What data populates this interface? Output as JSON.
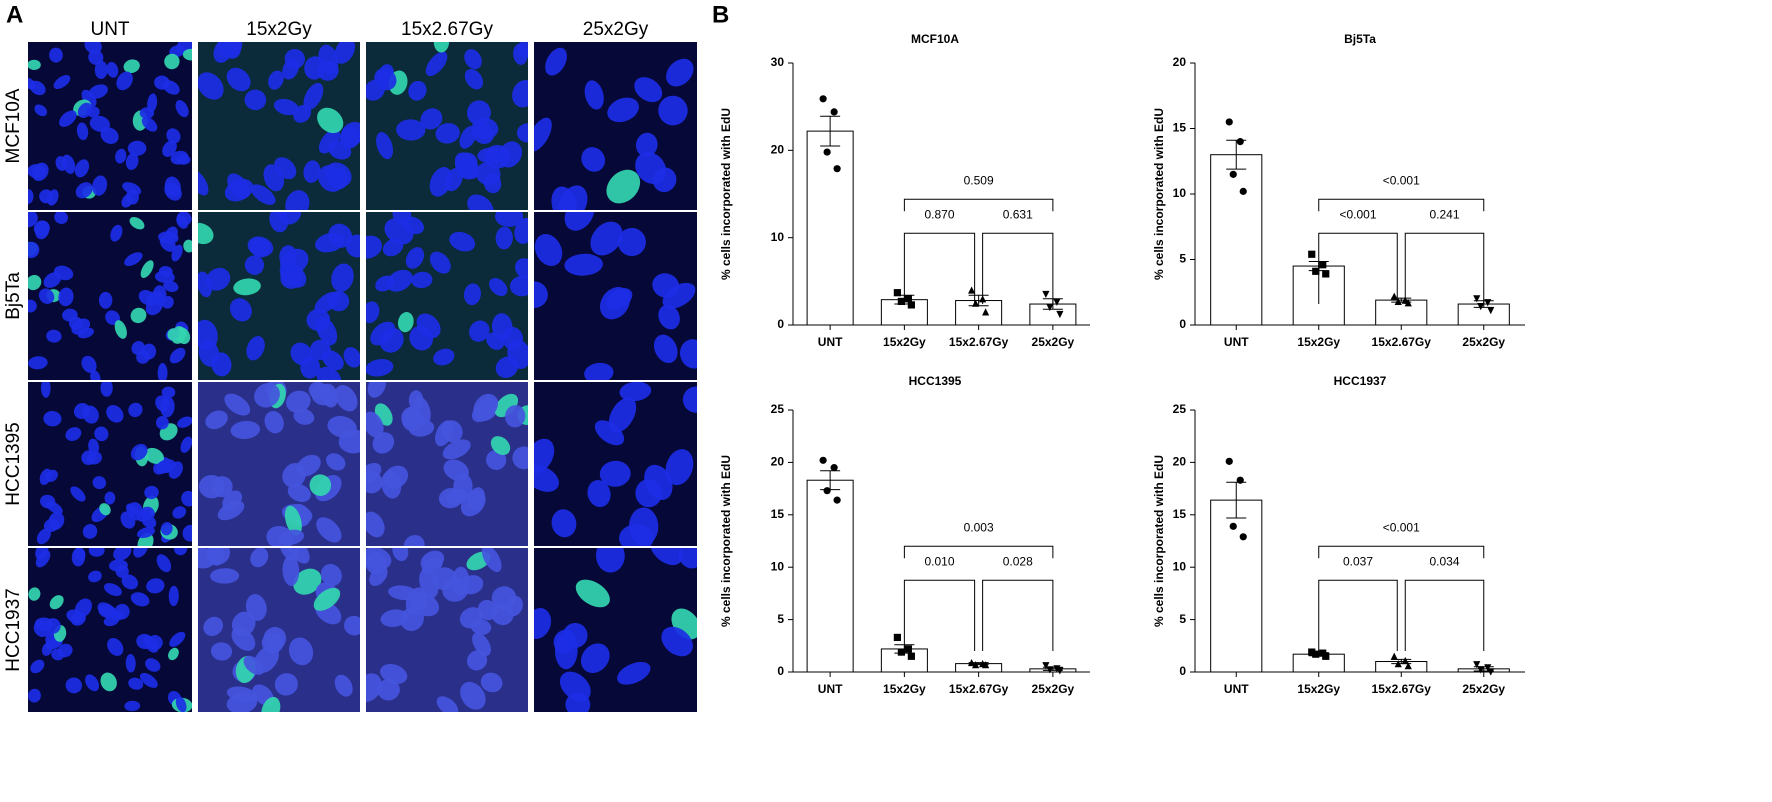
{
  "panel_a": {
    "label": "A",
    "columns": [
      "UNT",
      "15x2Gy",
      "15x2.67Gy",
      "25x2Gy"
    ],
    "rows": [
      "MCF10A",
      "Bj5Ta",
      "HCC1395",
      "HCC1937"
    ]
  },
  "panel_b": {
    "label": "B"
  },
  "chart_data": [
    {
      "type": "bar",
      "title": "MCF10A",
      "y_label": "% cells incorporated with EdU",
      "categories": [
        "UNT",
        "15x2Gy",
        "15x2.67Gy",
        "25x2Gy"
      ],
      "values": [
        22.2,
        2.9,
        2.8,
        2.4
      ],
      "errors": [
        1.7,
        0.5,
        0.6,
        0.6
      ],
      "points": [
        [
          25.9,
          24.4,
          19.8,
          17.9
        ],
        [
          3.7,
          3.0,
          2.7,
          2.3
        ],
        [
          4.0,
          3.0,
          2.5,
          1.5
        ],
        [
          3.5,
          2.6,
          2.0,
          1.2
        ]
      ],
      "markers": [
        "circle",
        "square",
        "triangle-up",
        "triangle-down"
      ],
      "brackets": [
        {
          "between": [
            "15x2Gy",
            "25x2Gy"
          ],
          "label": "0.509"
        },
        {
          "between": [
            "15x2Gy",
            "15x2.67Gy"
          ],
          "label": "0.870"
        },
        {
          "between": [
            "15x2.67Gy",
            "25x2Gy"
          ],
          "label": "0.631"
        }
      ],
      "bar_fill": "#ffffff",
      "bar_edge": "#000000",
      "ylim": [
        0,
        30
      ],
      "yticks": [
        0,
        10,
        20,
        30
      ]
    },
    {
      "type": "bar",
      "title": "Bj5Ta",
      "y_label": "% cells incorporated with EdU",
      "categories": [
        "UNT",
        "15x2Gy",
        "15x2.67Gy",
        "25x2Gy"
      ],
      "values": [
        13.0,
        4.5,
        1.9,
        1.6
      ],
      "errors": [
        1.1,
        0.35,
        0.15,
        0.25
      ],
      "points": [
        [
          15.5,
          14.0,
          11.5,
          10.2
        ],
        [
          5.4,
          4.6,
          4.1,
          3.9
        ],
        [
          2.2,
          1.9,
          1.8,
          1.7
        ],
        [
          2.0,
          1.7,
          1.4,
          1.1
        ]
      ],
      "markers": [
        "circle",
        "square",
        "triangle-up",
        "triangle-down"
      ],
      "brackets": [
        {
          "between": [
            "15x2Gy",
            "25x2Gy"
          ],
          "label": "<0.001"
        },
        {
          "between": [
            "15x2Gy",
            "15x2.67Gy"
          ],
          "label": "<0.001"
        },
        {
          "between": [
            "15x2.67Gy",
            "25x2Gy"
          ],
          "label": "0.241"
        }
      ],
      "bar_fill": "#ffffff",
      "bar_edge": "#000000",
      "ylim": [
        0,
        20
      ],
      "yticks": [
        0,
        5,
        10,
        15,
        20
      ]
    },
    {
      "type": "bar",
      "title": "HCC1395",
      "y_label": "% cells incorporated with EdU",
      "categories": [
        "UNT",
        "15x2Gy",
        "15x2.67Gy",
        "25x2Gy"
      ],
      "values": [
        18.3,
        2.2,
        0.8,
        0.3
      ],
      "errors": [
        0.9,
        0.4,
        0.1,
        0.15
      ],
      "points": [
        [
          20.2,
          19.5,
          17.3,
          16.4
        ],
        [
          3.3,
          2.2,
          1.9,
          1.5
        ],
        [
          0.9,
          0.8,
          0.7,
          0.7
        ],
        [
          0.6,
          0.3,
          0.2,
          0.1
        ]
      ],
      "markers": [
        "circle",
        "square",
        "triangle-up",
        "triangle-down"
      ],
      "brackets": [
        {
          "between": [
            "15x2Gy",
            "25x2Gy"
          ],
          "label": "0.003"
        },
        {
          "between": [
            "15x2Gy",
            "15x2.67Gy"
          ],
          "label": "0.010"
        },
        {
          "between": [
            "15x2.67Gy",
            "25x2Gy"
          ],
          "label": "0.028"
        }
      ],
      "bar_fill": "#ffffff",
      "bar_edge": "#000000",
      "ylim": [
        0,
        25
      ],
      "yticks": [
        0,
        5,
        10,
        15,
        20,
        25
      ]
    },
    {
      "type": "bar",
      "title": "HCC1937",
      "y_label": "% cells incorporated with EdU",
      "categories": [
        "UNT",
        "15x2Gy",
        "15x2.67Gy",
        "25x2Gy"
      ],
      "values": [
        16.4,
        1.7,
        1.0,
        0.3
      ],
      "errors": [
        1.7,
        0.15,
        0.2,
        0.2
      ],
      "points": [
        [
          20.1,
          18.3,
          13.9,
          12.9
        ],
        [
          1.9,
          1.8,
          1.7,
          1.5
        ],
        [
          1.5,
          1.1,
          0.8,
          0.6
        ],
        [
          0.7,
          0.4,
          0.2,
          0.0
        ]
      ],
      "markers": [
        "circle",
        "square",
        "triangle-up",
        "triangle-down"
      ],
      "brackets": [
        {
          "between": [
            "15x2Gy",
            "25x2Gy"
          ],
          "label": "<0.001"
        },
        {
          "between": [
            "15x2Gy",
            "15x2.67Gy"
          ],
          "label": "0.037"
        },
        {
          "between": [
            "15x2.67Gy",
            "25x2Gy"
          ],
          "label": "0.034"
        }
      ],
      "bar_fill": "#ffffff",
      "bar_edge": "#000000",
      "ylim": [
        0,
        25
      ],
      "yticks": [
        0,
        5,
        10,
        15,
        20,
        25
      ]
    }
  ]
}
